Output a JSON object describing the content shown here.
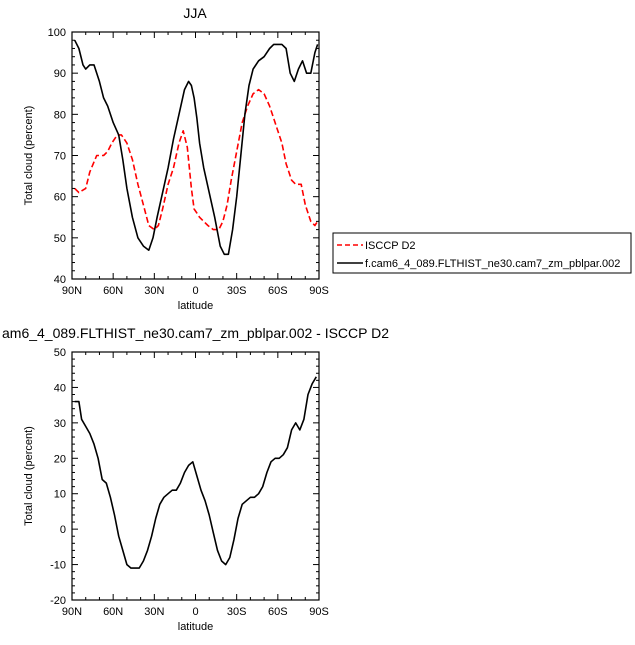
{
  "chart_data": [
    {
      "type": "line",
      "title": "JJA",
      "xlabel": "latitude",
      "ylabel": "Total cloud (percent)",
      "xlim": [
        90,
        -90
      ],
      "ylim": [
        40,
        100
      ],
      "xticks": [
        90,
        60,
        30,
        0,
        -30,
        -60,
        -90
      ],
      "xticklabels": [
        "90N",
        "60N",
        "30N",
        "0",
        "30S",
        "60S",
        "90S"
      ],
      "yticks": [
        40,
        50,
        60,
        70,
        80,
        90,
        100
      ],
      "legend": {
        "position": "right",
        "entries": [
          "ISCCP D2",
          "f.cam6_4_089.FLTHIST_ne30.cam7_zm_pblpar.002"
        ]
      },
      "series": [
        {
          "name": "ISCCP D2",
          "color": "#ff0000",
          "dash": "dashed",
          "x": [
            88,
            85,
            80,
            77,
            72,
            70,
            67,
            64,
            61,
            57,
            54,
            50,
            46,
            42,
            38,
            34,
            30,
            27,
            24,
            20,
            16,
            12,
            9,
            6,
            3,
            1,
            -1,
            -3,
            -6,
            -9,
            -13,
            -17,
            -20,
            -23,
            -26,
            -30,
            -34,
            -38,
            -42,
            -46,
            -50,
            -54,
            -57,
            -60,
            -63,
            -66,
            -70,
            -73,
            -77,
            -80,
            -84,
            -87,
            -89
          ],
          "values": [
            62,
            61,
            62,
            66,
            70,
            70,
            70,
            71,
            73,
            75,
            75,
            73,
            69,
            63,
            58,
            53,
            52,
            53,
            57,
            63,
            67,
            73,
            76,
            72,
            62,
            57,
            56,
            55,
            54,
            53,
            52,
            52,
            54,
            58,
            64,
            71,
            78,
            82,
            85,
            86,
            85,
            82,
            79,
            76,
            73,
            68,
            64,
            63,
            63,
            58,
            54,
            53,
            54
          ]
        },
        {
          "name": "f.cam6_4_089.FLTHIST_ne30.cam7_zm_pblpar.002",
          "color": "#000000",
          "dash": "solid",
          "x": [
            88,
            85,
            82,
            80,
            77,
            74,
            70,
            67,
            64,
            60,
            56,
            53,
            50,
            46,
            42,
            38,
            34,
            31,
            28,
            24,
            20,
            16,
            12,
            8,
            5,
            3,
            1,
            -1,
            -3,
            -6,
            -10,
            -14,
            -18,
            -21,
            -24,
            -27,
            -30,
            -33,
            -36,
            -39,
            -42,
            -46,
            -50,
            -54,
            -57,
            -60,
            -63,
            -66,
            -69,
            -72,
            -75,
            -78,
            -81,
            -84,
            -87,
            -89
          ],
          "values": [
            98,
            96,
            92,
            91,
            92,
            92,
            88,
            84,
            82,
            78,
            75,
            69,
            62,
            55,
            50,
            48,
            47,
            50,
            55,
            61,
            67,
            74,
            80,
            86,
            88,
            87,
            84,
            79,
            73,
            67,
            61,
            55,
            48,
            46,
            46,
            52,
            60,
            70,
            80,
            87,
            91,
            93,
            94,
            96,
            97,
            97,
            97,
            96,
            90,
            88,
            91,
            93,
            90,
            90,
            95,
            97
          ]
        }
      ]
    },
    {
      "type": "line",
      "title": "am6_4_089.FLTHIST_ne30.cam7_zm_pblpar.002 - ISCCP D2",
      "xlabel": "latitude",
      "ylabel": "Total cloud (percent)",
      "xlim": [
        90,
        -90
      ],
      "ylim": [
        -20,
        50
      ],
      "xticks": [
        90,
        60,
        30,
        0,
        -30,
        -60,
        -90
      ],
      "xticklabels": [
        "90N",
        "60N",
        "30N",
        "0",
        "30S",
        "60S",
        "90S"
      ],
      "yticks": [
        -20,
        -10,
        0,
        10,
        20,
        30,
        40,
        50
      ],
      "series": [
        {
          "color": "#000000",
          "dash": "solid",
          "x": [
            88,
            85,
            83,
            80,
            77,
            74,
            71,
            68,
            65,
            62,
            59,
            56,
            53,
            50,
            47,
            44,
            41,
            38,
            35,
            32,
            29,
            26,
            23,
            20,
            17,
            14,
            11,
            8,
            5,
            2,
            -1,
            -4,
            -7,
            -10,
            -13,
            -16,
            -19,
            -22,
            -25,
            -28,
            -31,
            -34,
            -37,
            -40,
            -43,
            -46,
            -49,
            -52,
            -55,
            -58,
            -61,
            -64,
            -67,
            -70,
            -73,
            -76,
            -79,
            -82,
            -85,
            -88
          ],
          "values": [
            36,
            36,
            31,
            29,
            27,
            24,
            20,
            14,
            13,
            9,
            4,
            -2,
            -6,
            -10,
            -11,
            -11,
            -11,
            -9,
            -6,
            -2,
            3,
            7,
            9,
            10,
            11,
            11,
            13,
            16,
            18,
            19,
            15,
            11,
            8,
            4,
            -1,
            -6,
            -9,
            -10,
            -8,
            -3,
            3,
            7,
            8,
            9,
            9,
            10,
            12,
            16,
            19,
            20,
            20,
            21,
            23,
            28,
            30,
            28,
            31,
            38,
            41,
            43
          ]
        }
      ]
    }
  ]
}
